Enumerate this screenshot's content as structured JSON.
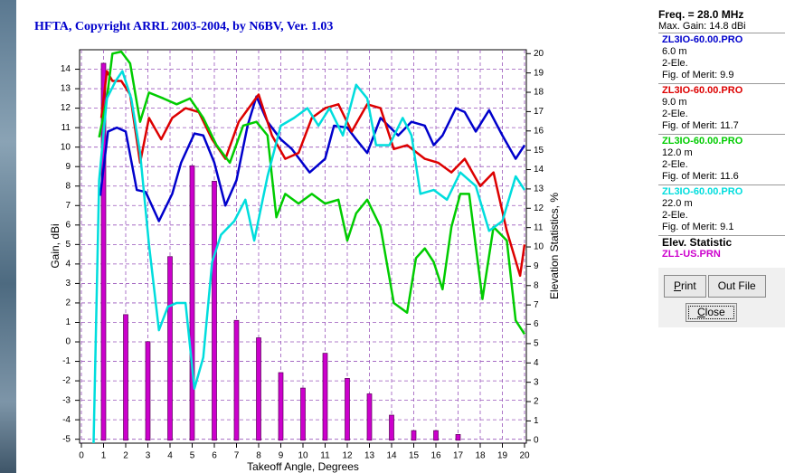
{
  "chart_data": {
    "type": "line",
    "title": "HFTA, Copyright ARRL 2003-2004, by N6BV, Ver. 1.03",
    "x_label": "Takeoff Angle, Degrees",
    "y_label": "Gain, dBi",
    "y2_label": "Elevation Statistics, %",
    "xlim": [
      0,
      20
    ],
    "xticks": [
      0,
      1,
      2,
      3,
      4,
      5,
      6,
      7,
      8,
      9,
      10,
      11,
      12,
      13,
      14,
      15,
      16,
      17,
      18,
      19,
      20
    ],
    "ylim": [
      -5.2,
      15
    ],
    "yticks": [
      -5,
      -4,
      -3,
      -2,
      -1,
      0,
      1,
      2,
      3,
      4,
      5,
      6,
      7,
      8,
      9,
      10,
      11,
      12,
      13,
      14
    ],
    "y2lim": [
      -0.15,
      20.2
    ],
    "y2ticks": [
      0,
      1,
      2,
      3,
      4,
      5,
      6,
      7,
      8,
      9,
      10,
      11,
      12,
      13,
      14,
      15,
      16,
      17,
      18,
      19,
      20
    ],
    "grid": true,
    "series": [
      {
        "name": "ZL3IO-60.00.PRO",
        "color": "#0000cc",
        "height": "6.0 m",
        "elements": "2-Ele.",
        "merit": "Fig. of Merit: 9.9",
        "x": [
          0.85,
          1.2,
          1.6,
          2.0,
          2.5,
          2.9,
          3.5,
          4.1,
          4.5,
          5.1,
          5.5,
          6.0,
          6.5,
          7.0,
          7.5,
          7.9,
          8.4,
          9.0,
          9.5,
          10.3,
          11.0,
          11.4,
          12.0,
          12.4,
          12.9,
          13.5,
          14.3,
          14.9,
          15.5,
          15.9,
          16.3,
          16.9,
          17.3,
          17.8,
          18.4,
          19.0,
          19.6,
          20.0
        ],
        "values": [
          7.5,
          10.8,
          11.0,
          10.8,
          7.8,
          7.7,
          6.2,
          7.6,
          9.2,
          10.7,
          10.6,
          9.2,
          7.0,
          8.3,
          11.1,
          12.6,
          11.3,
          10.4,
          9.9,
          8.7,
          9.4,
          11.1,
          11.0,
          10.4,
          9.7,
          11.5,
          10.6,
          11.3,
          11.1,
          10.1,
          10.6,
          12.0,
          11.8,
          10.8,
          11.9,
          10.6,
          9.4,
          10.1
        ]
      },
      {
        "name": "ZL3IO-60.00.PRO",
        "color": "#dd0000",
        "height": "9.0 m",
        "elements": "2-Ele.",
        "merit": "Fig. of Merit: 11.7",
        "x": [
          0.9,
          1.15,
          1.4,
          1.8,
          2.2,
          2.65,
          3.05,
          3.6,
          4.1,
          4.7,
          5.3,
          5.9,
          6.5,
          7.1,
          8.0,
          8.6,
          9.2,
          9.8,
          10.4,
          11.0,
          11.6,
          12.2,
          12.9,
          13.5,
          14.1,
          14.7,
          15.5,
          16.1,
          16.7,
          17.3,
          18.0,
          18.6,
          19.2,
          19.8,
          20.0
        ],
        "values": [
          11.5,
          13.9,
          13.4,
          13.4,
          12.7,
          9.2,
          11.5,
          10.4,
          11.5,
          12.0,
          11.8,
          10.4,
          9.4,
          11.3,
          12.7,
          10.6,
          9.4,
          9.7,
          11.5,
          12.0,
          12.2,
          10.8,
          12.2,
          12.0,
          9.9,
          10.1,
          9.4,
          9.2,
          8.7,
          9.4,
          8.0,
          8.7,
          5.7,
          3.4,
          5.0
        ]
      },
      {
        "name": "ZL3IO-60.00.PRO",
        "color": "#00cc00",
        "height": "12.0 m",
        "elements": "2-Ele.",
        "merit": "Fig. of Merit: 11.6",
        "x": [
          0.8,
          1.15,
          1.4,
          1.8,
          2.2,
          2.65,
          3.05,
          3.7,
          4.3,
          4.9,
          5.5,
          6.1,
          6.7,
          7.3,
          7.9,
          8.4,
          8.8,
          9.2,
          9.8,
          10.4,
          11.0,
          11.6,
          12.0,
          12.4,
          12.9,
          13.5,
          14.1,
          14.7,
          15.1,
          15.5,
          15.9,
          16.3,
          16.7,
          17.1,
          17.5,
          18.1,
          18.6,
          19.2,
          19.6,
          20.0
        ],
        "values": [
          10.5,
          12.5,
          14.8,
          14.9,
          14.3,
          11.3,
          12.8,
          12.5,
          12.2,
          12.5,
          11.5,
          10.1,
          9.2,
          11.1,
          11.3,
          10.6,
          6.4,
          7.6,
          7.1,
          7.6,
          7.1,
          7.3,
          5.2,
          6.6,
          7.3,
          5.9,
          2.0,
          1.5,
          4.3,
          4.8,
          4.1,
          2.7,
          5.9,
          7.6,
          7.6,
          2.2,
          5.9,
          5.2,
          1.1,
          0.4
        ]
      },
      {
        "name": "ZL3IO-60.00.PRO",
        "color": "#00dddd",
        "height": "22.0 m",
        "elements": "2-Ele.",
        "merit": "Fig. of Merit: 9.1",
        "x": [
          0.55,
          0.8,
          1.15,
          1.55,
          1.85,
          2.25,
          2.65,
          3.05,
          3.5,
          3.9,
          4.3,
          4.7,
          5.1,
          5.5,
          5.9,
          6.3,
          6.9,
          7.4,
          7.8,
          8.4,
          9.0,
          9.6,
          10.2,
          10.7,
          11.2,
          11.8,
          12.4,
          12.9,
          13.3,
          13.9,
          14.5,
          14.9,
          15.3,
          15.9,
          16.5,
          17.1,
          17.8,
          18.4,
          19.0,
          19.6,
          20.0
        ],
        "values": [
          -5.2,
          8.3,
          12.5,
          13.4,
          13.9,
          12.5,
          9.7,
          5.0,
          0.6,
          1.8,
          2.0,
          2.0,
          -2.4,
          -0.8,
          4.1,
          5.5,
          6.2,
          7.3,
          5.2,
          8.5,
          11.1,
          11.5,
          12.0,
          11.1,
          12.0,
          10.6,
          13.2,
          12.5,
          10.1,
          10.1,
          11.5,
          10.6,
          7.6,
          7.8,
          7.3,
          8.7,
          8.0,
          5.7,
          6.2,
          8.5,
          7.8
        ]
      },
      {
        "name": "ZL1-US.PRN",
        "color": "#cc00cc",
        "type": "bar",
        "axis": "y2",
        "x": [
          1,
          2,
          3,
          4,
          5,
          6,
          7,
          8,
          9,
          10,
          11,
          12,
          13,
          14,
          15,
          16,
          17
        ],
        "values": [
          19.5,
          6.5,
          5.1,
          9.5,
          14.2,
          13.4,
          6.2,
          5.3,
          3.5,
          2.7,
          4.5,
          3.2,
          2.4,
          1.3,
          0.5,
          0.5,
          0.3
        ]
      }
    ]
  },
  "panel": {
    "freq": "Freq. = 28.0 MHz",
    "max_gain": "Max. Gain: 14.8 dBi",
    "stat_title": "Elev. Statistic",
    "buttons": [
      "Print",
      "Out File",
      "Close"
    ]
  }
}
